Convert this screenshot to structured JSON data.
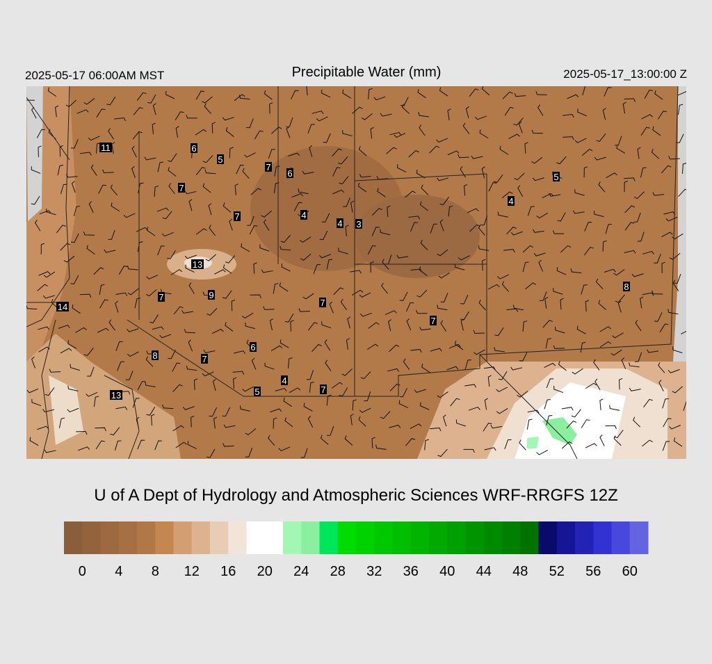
{
  "header": {
    "title": "Precipitable Water (mm)",
    "local_time": "2025-05-17 06:00AM MST",
    "valid_time": "2025-05-17_13:00:00 Z"
  },
  "stations": [
    11,
    6,
    5,
    7,
    6,
    7,
    7,
    4,
    4,
    3,
    4,
    5,
    13,
    9,
    7,
    7,
    14,
    7,
    8,
    6,
    8,
    7,
    4,
    5,
    7,
    13
  ],
  "footer": "U of A Dept of Hydrology and Atmospheric Sciences WRF-RRGFS 12Z",
  "colorbar": {
    "lim": [
      -2,
      62
    ],
    "colors": [
      "#8a5d3b",
      "#93633e",
      "#9c6941",
      "#a66f44",
      "#b07747",
      "#c4874f",
      "#d39f72",
      "#dcb28f",
      "#e8cdb6",
      "#f3e4d9",
      "#ffffff",
      "#ffffff",
      "#a2f7b4",
      "#8af0a0",
      "#00e65a",
      "#00dc00",
      "#00d200",
      "#00c800",
      "#00be00",
      "#00b400",
      "#00aa00",
      "#00a000",
      "#009400",
      "#008a00",
      "#008000",
      "#007200",
      "#0a0a6a",
      "#151598",
      "#2222b4",
      "#3232d2",
      "#4848dc",
      "#6464e0"
    ],
    "ticks": [
      0,
      4,
      8,
      12,
      16,
      20,
      24,
      28,
      32,
      36,
      40,
      44,
      48,
      52,
      56,
      60
    ]
  }
}
